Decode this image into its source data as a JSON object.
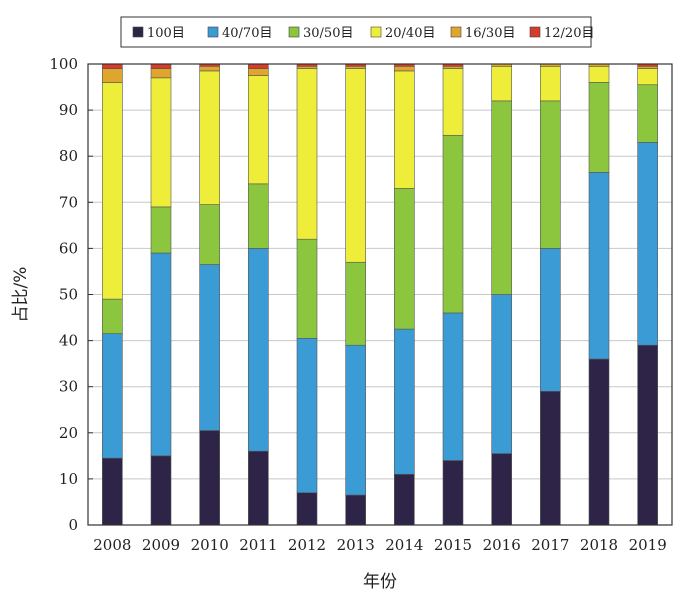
{
  "chart_data": {
    "type": "bar",
    "stacked": true,
    "title": "",
    "xlabel": "年份",
    "ylabel": "占比/%",
    "ylim": [
      0,
      100
    ],
    "yticks": [
      0,
      10,
      20,
      30,
      40,
      50,
      60,
      70,
      80,
      90,
      100
    ],
    "grid": true,
    "legend_position": "top",
    "categories": [
      "2008",
      "2009",
      "2010",
      "2011",
      "2012",
      "2013",
      "2014",
      "2015",
      "2016",
      "2017",
      "2018",
      "2019"
    ],
    "series": [
      {
        "name": "100目",
        "color": "#2e2447",
        "values": [
          14.5,
          15.0,
          20.5,
          16.0,
          7.0,
          6.5,
          11.0,
          14.0,
          15.5,
          29.0,
          36.0,
          39.0
        ]
      },
      {
        "name": "40/70目",
        "color": "#3a9bd5",
        "values": [
          27.0,
          44.0,
          36.0,
          44.0,
          33.5,
          32.5,
          31.5,
          32.0,
          34.5,
          31.0,
          40.5,
          44.0
        ]
      },
      {
        "name": "30/50目",
        "color": "#8cc63e",
        "values": [
          7.5,
          10.0,
          13.0,
          14.0,
          21.5,
          18.0,
          30.5,
          38.5,
          42.0,
          32.0,
          19.5,
          12.5
        ]
      },
      {
        "name": "20/40目",
        "color": "#eeee3a",
        "values": [
          47.0,
          28.0,
          29.0,
          23.5,
          37.0,
          42.0,
          25.5,
          14.5,
          7.5,
          7.5,
          3.5,
          3.5
        ]
      },
      {
        "name": "16/30目",
        "color": "#e0a52c",
        "values": [
          3.0,
          2.0,
          1.0,
          1.5,
          0.5,
          0.5,
          1.0,
          0.5,
          0.5,
          0.5,
          0.5,
          0.5
        ]
      },
      {
        "name": "12/20目",
        "color": "#d73b2b",
        "values": [
          1.0,
          1.0,
          0.5,
          1.0,
          0.5,
          0.5,
          0.5,
          0.5,
          0,
          0,
          0,
          0.5
        ]
      }
    ]
  }
}
